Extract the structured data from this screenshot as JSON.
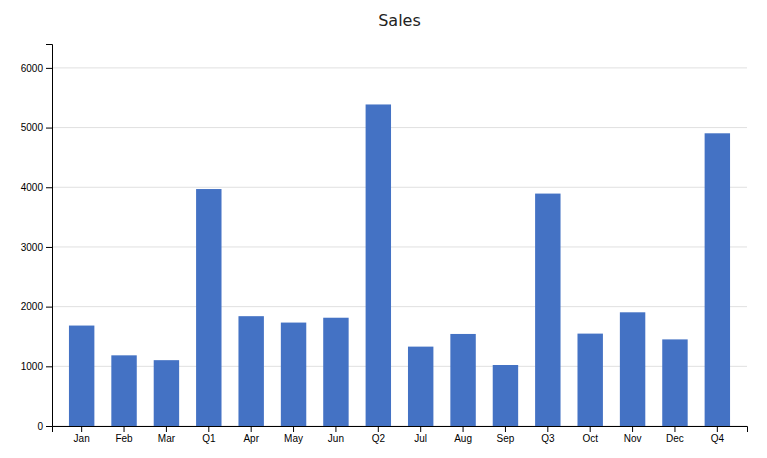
{
  "chart_data": {
    "type": "bar",
    "title": "Sales",
    "categories": [
      "Jan",
      "Feb",
      "Mar",
      "Q1",
      "Apr",
      "May",
      "Jun",
      "Q2",
      "Jul",
      "Aug",
      "Sep",
      "Q3",
      "Oct",
      "Nov",
      "Dec",
      "Q4"
    ],
    "values": [
      1683,
      1184,
      1103,
      3970,
      1840,
      1733,
      1814,
      5387,
      1330,
      1542,
      1022,
      3894,
      1548,
      1905,
      1451,
      4904
    ],
    "color": "#4472C4",
    "ylim": [
      0,
      6400
    ],
    "yticks": [
      0,
      1000,
      2000,
      3000,
      4000,
      5000,
      6000
    ],
    "grid": true
  }
}
